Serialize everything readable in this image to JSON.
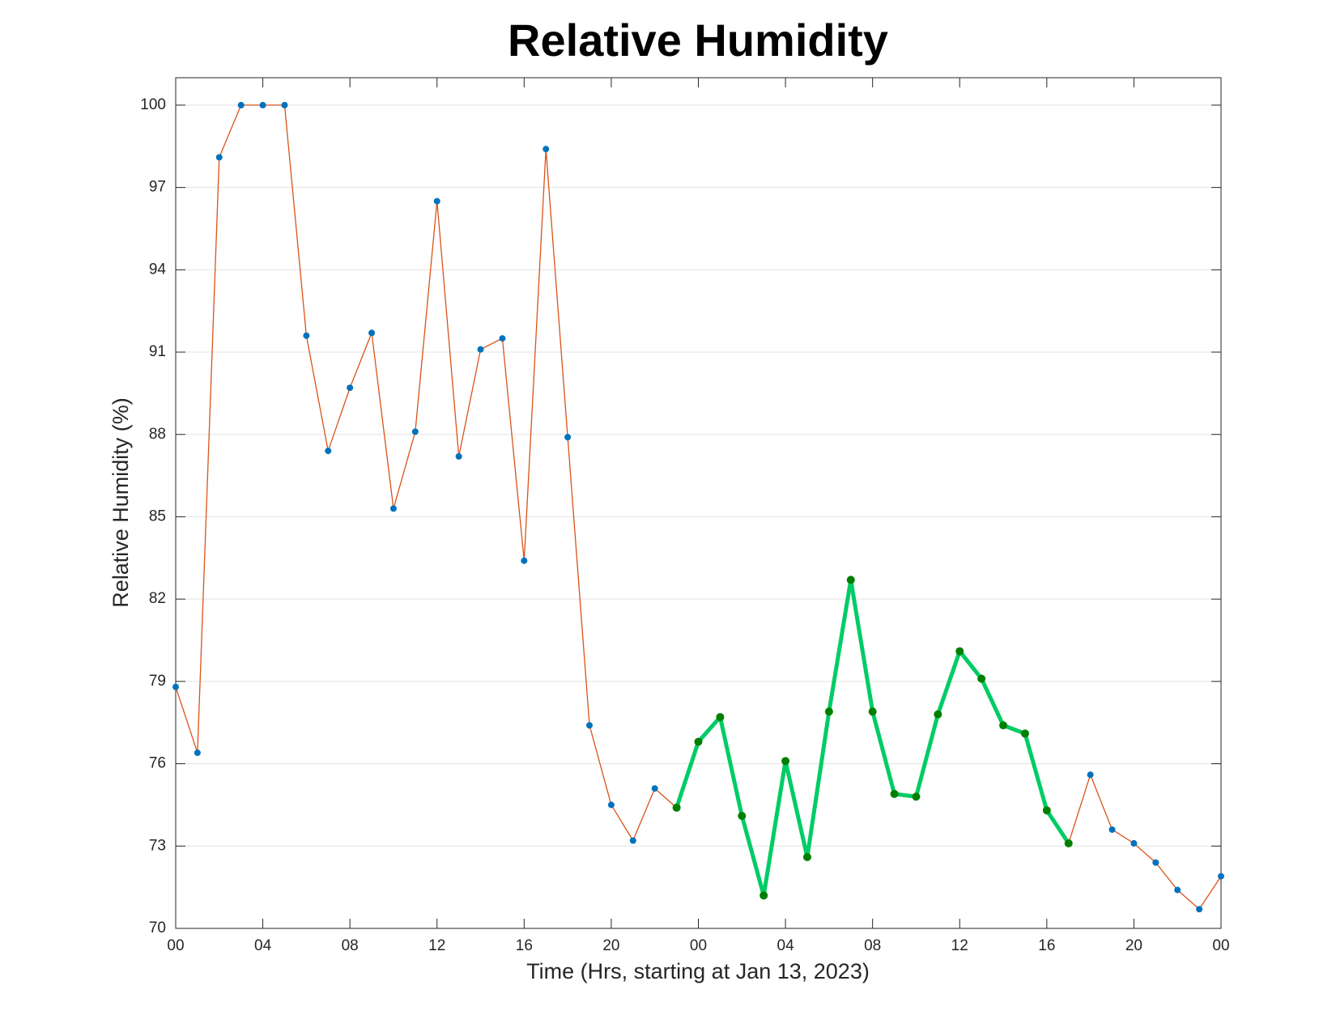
{
  "chart_data": {
    "type": "line",
    "title": "Relative Humidity",
    "x_label": "Time (Hrs, starting at Jan 13, 2023)",
    "y_label": "Relative Humidity (%)",
    "x": [
      0,
      1,
      2,
      3,
      4,
      5,
      6,
      7,
      8,
      9,
      10,
      11,
      12,
      13,
      14,
      15,
      16,
      17,
      18,
      19,
      20,
      21,
      22,
      23,
      24,
      25,
      26,
      27,
      28,
      29,
      30,
      31,
      32,
      33,
      34,
      35,
      36,
      37,
      38,
      39,
      40,
      41,
      42,
      43,
      44,
      45,
      46,
      47,
      48
    ],
    "series": [
      {
        "color": "#d95319",
        "marker_color": "#0072bd",
        "values": [
          78.8,
          76.4,
          98.1,
          100,
          100,
          100,
          91.6,
          87.4,
          89.7,
          91.7,
          85.3,
          88.1,
          96.5,
          87.2,
          91.1,
          91.5,
          83.4,
          98.4,
          87.9,
          77.4,
          74.5,
          73.2,
          75.1,
          74.4,
          76.8,
          77.7,
          74.1,
          71.2,
          76.1,
          72.6,
          77.9,
          82.7,
          77.9,
          74.9,
          74.8,
          77.8,
          80.1,
          79.1,
          77.4,
          77.1,
          74.3,
          73.1,
          75.6,
          73.6,
          73.1,
          72.4,
          71.4,
          70.7,
          71.9
        ]
      },
      {
        "color": "#00cc66",
        "marker_color": "#007f00",
        "values": [
          null,
          null,
          null,
          null,
          null,
          null,
          null,
          null,
          null,
          null,
          null,
          null,
          null,
          null,
          null,
          null,
          null,
          null,
          null,
          null,
          null,
          null,
          null,
          74.4,
          76.8,
          77.7,
          74.1,
          71.2,
          76.1,
          72.6,
          77.9,
          82.7,
          77.9,
          74.9,
          74.8,
          77.8,
          80.1,
          79.1,
          77.4,
          77.1,
          74.3,
          73.1,
          null,
          null,
          null,
          null,
          null,
          null,
          null
        ]
      }
    ],
    "xlim": [
      0,
      48
    ],
    "xticks": [
      {
        "value": 0,
        "label": "00"
      },
      {
        "value": 4,
        "label": "04"
      },
      {
        "value": 8,
        "label": "08"
      },
      {
        "value": 12,
        "label": "12"
      },
      {
        "value": 16,
        "label": "16"
      },
      {
        "value": 20,
        "label": "20"
      },
      {
        "value": 24,
        "label": "00"
      },
      {
        "value": 28,
        "label": "04"
      },
      {
        "value": 32,
        "label": "08"
      },
      {
        "value": 36,
        "label": "12"
      },
      {
        "value": 40,
        "label": "16"
      },
      {
        "value": 44,
        "label": "20"
      },
      {
        "value": 48,
        "label": "00"
      }
    ],
    "ylim": [
      70,
      101
    ],
    "yticks": [
      70,
      73,
      76,
      79,
      82,
      85,
      88,
      91,
      94,
      97,
      100
    ],
    "grid": true
  }
}
